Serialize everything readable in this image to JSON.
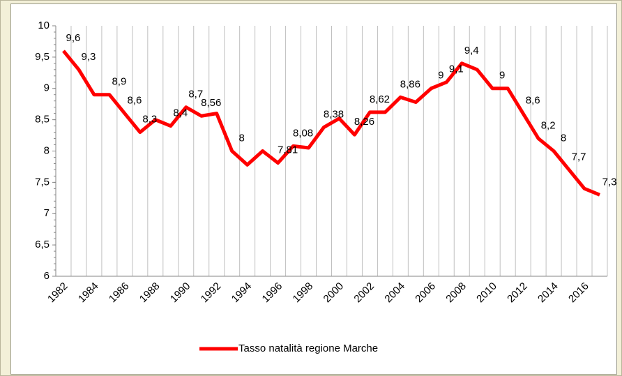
{
  "chart_data": {
    "type": "line",
    "categories": [
      "1982",
      null,
      "1984",
      null,
      "1986",
      null,
      "1988",
      null,
      "1990",
      null,
      "1992",
      null,
      "1994",
      null,
      "1996",
      null,
      "1998",
      null,
      "2000",
      null,
      "2002",
      null,
      "2004",
      null,
      "2006",
      null,
      "2008",
      null,
      "2010",
      null,
      "2012",
      null,
      "2014",
      null,
      "2016",
      null
    ],
    "series": [
      {
        "name": "Tasso natalità regione Marche",
        "color": "#ff0000",
        "values": [
          9.6,
          9.3,
          8.9,
          8.9,
          8.6,
          8.3,
          8.5,
          8.4,
          8.7,
          8.56,
          8.6,
          8.0,
          7.78,
          8.0,
          7.81,
          8.08,
          8.05,
          8.38,
          8.52,
          8.26,
          8.62,
          8.62,
          8.86,
          8.78,
          9.0,
          9.1,
          9.4,
          9.3,
          9.0,
          9.0,
          8.6,
          8.2,
          8.0,
          7.7,
          7.4,
          7.3
        ],
        "value_labels": [
          "9,6",
          "9,3",
          null,
          "8,9",
          "8,6",
          "8,3",
          null,
          "8,4",
          "8,7",
          "8,56",
          null,
          "8",
          null,
          null,
          "7,81",
          "8,08",
          null,
          "8,38",
          null,
          "8,26",
          "8,62",
          null,
          "8,86",
          null,
          "9",
          "9,1",
          "9,4",
          null,
          "9",
          null,
          "8,6",
          "8,2",
          "8",
          "7,7",
          null,
          "7,3"
        ]
      }
    ],
    "ylim": [
      6,
      10
    ],
    "yticks": [
      6,
      {
        "value": 6.5,
        "label": "6,5"
      },
      7,
      {
        "value": 7.5,
        "label": "7,5"
      },
      8,
      {
        "value": 8.5,
        "label": "8,5"
      },
      9,
      {
        "value": 9.5,
        "label": "9,5"
      },
      10
    ],
    "grid": "x",
    "legend": "bottom"
  }
}
